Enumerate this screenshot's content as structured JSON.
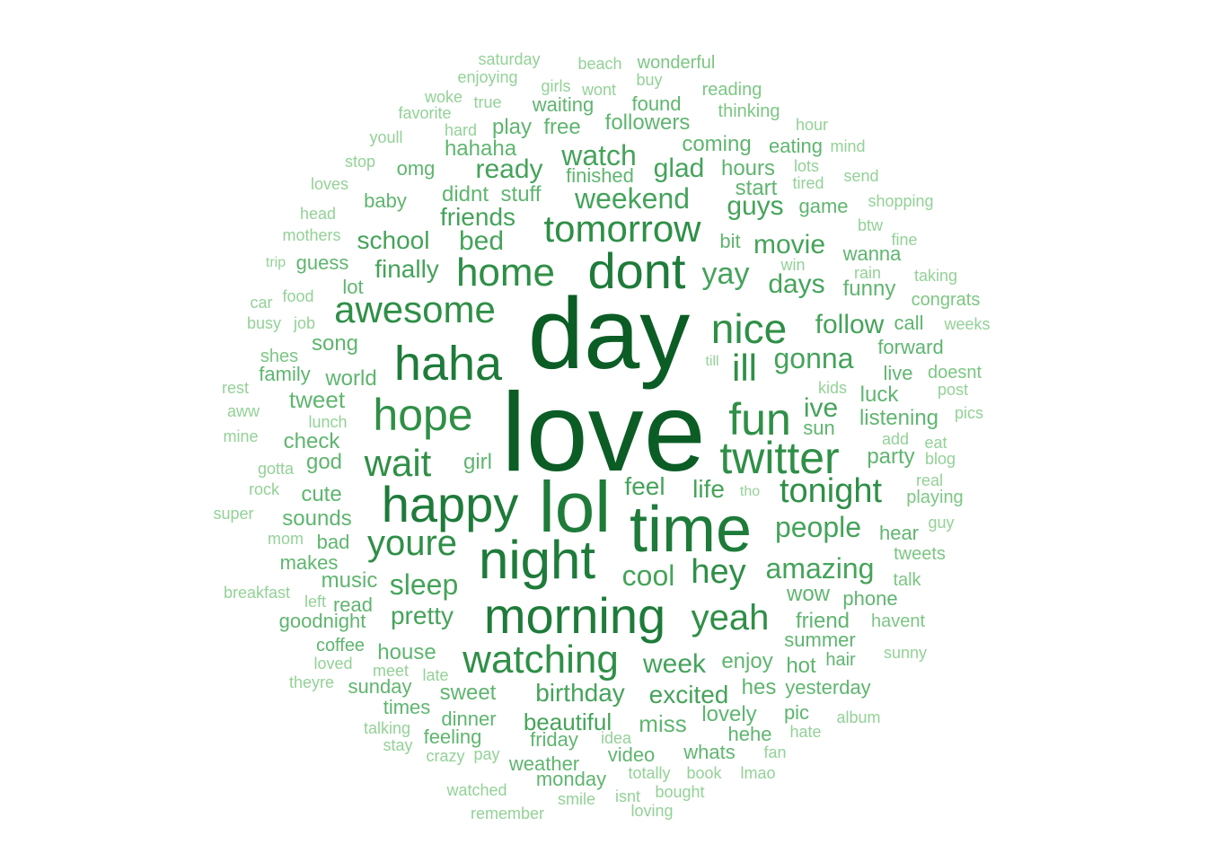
{
  "palette": {
    "darkest": "#0b5d25",
    "dark": "#1e7b3a",
    "mid_dark": "#2f8f47",
    "mid": "#45a35a",
    "mid_light": "#5fb56f",
    "light": "#7cc683",
    "lightest": "#93d197"
  },
  "words": [
    {
      "text": "love",
      "tier": 1
    },
    {
      "text": "day",
      "tier": 1
    },
    {
      "text": "lol",
      "tier": 2
    },
    {
      "text": "time",
      "tier": 2
    },
    {
      "text": "night",
      "tier": 2
    },
    {
      "text": "morning",
      "tier": 2
    },
    {
      "text": "dont",
      "tier": 2
    },
    {
      "text": "happy",
      "tier": 2
    },
    {
      "text": "haha",
      "tier": 2
    },
    {
      "text": "hope",
      "tier": 3
    },
    {
      "text": "twitter",
      "tier": 3
    },
    {
      "text": "fun",
      "tier": 3
    },
    {
      "text": "home",
      "tier": 3
    },
    {
      "text": "tomorrow",
      "tier": 3
    },
    {
      "text": "nice",
      "tier": 3
    },
    {
      "text": "awesome",
      "tier": 3
    },
    {
      "text": "watching",
      "tier": 3
    },
    {
      "text": "youre",
      "tier": 3
    },
    {
      "text": "wait",
      "tier": 3
    },
    {
      "text": "ill",
      "tier": 3
    },
    {
      "text": "yeah",
      "tier": 3
    },
    {
      "text": "tonight",
      "tier": 3
    },
    {
      "text": "hey",
      "tier": 3
    },
    {
      "text": "weekend",
      "tier": 4
    },
    {
      "text": "watch",
      "tier": 4
    },
    {
      "text": "sleep",
      "tier": 4
    },
    {
      "text": "cool",
      "tier": 4
    },
    {
      "text": "amazing",
      "tier": 4
    },
    {
      "text": "people",
      "tier": 4
    },
    {
      "text": "gonna",
      "tier": 4
    },
    {
      "text": "yay",
      "tier": 4
    },
    {
      "text": "week",
      "tier": 4
    },
    {
      "text": "birthday",
      "tier": 4
    },
    {
      "text": "follow",
      "tier": 4
    },
    {
      "text": "movie",
      "tier": 4
    },
    {
      "text": "ready",
      "tier": 4
    },
    {
      "text": "glad",
      "tier": 4
    },
    {
      "text": "guys",
      "tier": 4
    },
    {
      "text": "days",
      "tier": 4
    },
    {
      "text": "bed",
      "tier": 4
    },
    {
      "text": "friends",
      "tier": 4
    },
    {
      "text": "school",
      "tier": 4
    },
    {
      "text": "finally",
      "tier": 4
    },
    {
      "text": "pretty",
      "tier": 4
    },
    {
      "text": "ive",
      "tier": 4
    },
    {
      "text": "feel",
      "tier": 4
    },
    {
      "text": "life",
      "tier": 4
    },
    {
      "text": "excited",
      "tier": 4
    },
    {
      "text": "beautiful",
      "tier": 4
    },
    {
      "text": "song",
      "tier": 5
    },
    {
      "text": "tweet",
      "tier": 5
    },
    {
      "text": "check",
      "tier": 5
    },
    {
      "text": "world",
      "tier": 5
    },
    {
      "text": "god",
      "tier": 5
    },
    {
      "text": "cute",
      "tier": 5
    },
    {
      "text": "sounds",
      "tier": 5
    },
    {
      "text": "girl",
      "tier": 5
    },
    {
      "text": "music",
      "tier": 5
    },
    {
      "text": "house",
      "tier": 5
    },
    {
      "text": "sweet",
      "tier": 5
    },
    {
      "text": "miss",
      "tier": 5
    },
    {
      "text": "enjoy",
      "tier": 5
    },
    {
      "text": "friend",
      "tier": 5
    },
    {
      "text": "summer",
      "tier": 5
    },
    {
      "text": "wow",
      "tier": 5
    },
    {
      "text": "luck",
      "tier": 5
    },
    {
      "text": "listening",
      "tier": 5
    },
    {
      "text": "party",
      "tier": 5
    },
    {
      "text": "funny",
      "tier": 5
    },
    {
      "text": "forward",
      "tier": 5
    },
    {
      "text": "didnt",
      "tier": 5
    },
    {
      "text": "stuff",
      "tier": 5
    },
    {
      "text": "hours",
      "tier": 5
    },
    {
      "text": "coming",
      "tier": 5
    },
    {
      "text": "start",
      "tier": 5
    },
    {
      "text": "lovely",
      "tier": 5
    },
    {
      "text": "hes",
      "tier": 5
    },
    {
      "text": "hot",
      "tier": 5
    },
    {
      "text": "dinner",
      "tier": 5
    },
    {
      "text": "friday",
      "tier": 5
    },
    {
      "text": "video",
      "tier": 5
    },
    {
      "text": "weather",
      "tier": 5
    },
    {
      "text": "monday",
      "tier": 5
    },
    {
      "text": "sunday",
      "tier": 5
    },
    {
      "text": "feeling",
      "tier": 5
    },
    {
      "text": "whats",
      "tier": 5
    },
    {
      "text": "hehe",
      "tier": 5
    },
    {
      "text": "yesterday",
      "tier": 5
    },
    {
      "text": "hear",
      "tier": 5
    },
    {
      "text": "bad",
      "tier": 5
    },
    {
      "text": "makes",
      "tier": 5
    },
    {
      "text": "read",
      "tier": 5
    },
    {
      "text": "goodnight",
      "tier": 5
    },
    {
      "text": "hahaha",
      "tier": 5
    },
    {
      "text": "followers",
      "tier": 5
    },
    {
      "text": "finished",
      "tier": 5
    },
    {
      "text": "play",
      "tier": 5
    },
    {
      "text": "free",
      "tier": 5
    },
    {
      "text": "waiting",
      "tier": 5
    },
    {
      "text": "found",
      "tier": 5
    },
    {
      "text": "eating",
      "tier": 5
    },
    {
      "text": "game",
      "tier": 5
    },
    {
      "text": "wanna",
      "tier": 5
    },
    {
      "text": "baby",
      "tier": 5
    },
    {
      "text": "omg",
      "tier": 5
    },
    {
      "text": "guess",
      "tier": 5
    },
    {
      "text": "lot",
      "tier": 5
    },
    {
      "text": "call",
      "tier": 5
    },
    {
      "text": "live",
      "tier": 5
    },
    {
      "text": "phone",
      "tier": 5
    },
    {
      "text": "hair",
      "tier": 5
    },
    {
      "text": "pic",
      "tier": 5
    },
    {
      "text": "times",
      "tier": 5
    },
    {
      "text": "sun",
      "tier": 5
    },
    {
      "text": "family",
      "tier": 5
    },
    {
      "text": "coffee",
      "tier": 5
    },
    {
      "text": "bit",
      "tier": 5
    },
    {
      "text": "reading",
      "tier": 6
    },
    {
      "text": "thinking",
      "tier": 6
    },
    {
      "text": "wonderful",
      "tier": 6
    },
    {
      "text": "beach",
      "tier": 6
    },
    {
      "text": "saturday",
      "tier": 6
    },
    {
      "text": "enjoying",
      "tier": 6
    },
    {
      "text": "girls",
      "tier": 6
    },
    {
      "text": "wont",
      "tier": 6
    },
    {
      "text": "buy",
      "tier": 6
    },
    {
      "text": "woke",
      "tier": 6
    },
    {
      "text": "true",
      "tier": 6
    },
    {
      "text": "favorite",
      "tier": 6
    },
    {
      "text": "hard",
      "tier": 6
    },
    {
      "text": "youll",
      "tier": 6
    },
    {
      "text": "hour",
      "tier": 6
    },
    {
      "text": "mind",
      "tier": 6
    },
    {
      "text": "lots",
      "tier": 6
    },
    {
      "text": "tired",
      "tier": 6
    },
    {
      "text": "send",
      "tier": 6
    },
    {
      "text": "shopping",
      "tier": 6
    },
    {
      "text": "btw",
      "tier": 6
    },
    {
      "text": "fine",
      "tier": 6
    },
    {
      "text": "stop",
      "tier": 6
    },
    {
      "text": "loves",
      "tier": 6
    },
    {
      "text": "head",
      "tier": 6
    },
    {
      "text": "mothers",
      "tier": 6
    },
    {
      "text": "trip",
      "tier": 6
    },
    {
      "text": "food",
      "tier": 6
    },
    {
      "text": "car",
      "tier": 6
    },
    {
      "text": "busy",
      "tier": 6
    },
    {
      "text": "job",
      "tier": 6
    },
    {
      "text": "shes",
      "tier": 6
    },
    {
      "text": "rest",
      "tier": 6
    },
    {
      "text": "aww",
      "tier": 6
    },
    {
      "text": "mine",
      "tier": 6
    },
    {
      "text": "lunch",
      "tier": 6
    },
    {
      "text": "gotta",
      "tier": 6
    },
    {
      "text": "rock",
      "tier": 6
    },
    {
      "text": "super",
      "tier": 6
    },
    {
      "text": "mom",
      "tier": 6
    },
    {
      "text": "breakfast",
      "tier": 6
    },
    {
      "text": "left",
      "tier": 6
    },
    {
      "text": "loved",
      "tier": 6
    },
    {
      "text": "meet",
      "tier": 6
    },
    {
      "text": "late",
      "tier": 6
    },
    {
      "text": "theyre",
      "tier": 6
    },
    {
      "text": "talking",
      "tier": 6
    },
    {
      "text": "stay",
      "tier": 6
    },
    {
      "text": "crazy",
      "tier": 6
    },
    {
      "text": "pay",
      "tier": 6
    },
    {
      "text": "idea",
      "tier": 6
    },
    {
      "text": "watched",
      "tier": 6
    },
    {
      "text": "smile",
      "tier": 6
    },
    {
      "text": "remember",
      "tier": 6
    },
    {
      "text": "isnt",
      "tier": 6
    },
    {
      "text": "loving",
      "tier": 6
    },
    {
      "text": "bought",
      "tier": 6
    },
    {
      "text": "totally",
      "tier": 6
    },
    {
      "text": "book",
      "tier": 6
    },
    {
      "text": "lmao",
      "tier": 6
    },
    {
      "text": "fan",
      "tier": 6
    },
    {
      "text": "hate",
      "tier": 6
    },
    {
      "text": "album",
      "tier": 6
    },
    {
      "text": "sunny",
      "tier": 6
    },
    {
      "text": "havent",
      "tier": 6
    },
    {
      "text": "talk",
      "tier": 6
    },
    {
      "text": "tweets",
      "tier": 6
    },
    {
      "text": "guy",
      "tier": 6
    },
    {
      "text": "playing",
      "tier": 6
    },
    {
      "text": "real",
      "tier": 6
    },
    {
      "text": "blog",
      "tier": 6
    },
    {
      "text": "eat",
      "tier": 6
    },
    {
      "text": "add",
      "tier": 6
    },
    {
      "text": "pics",
      "tier": 6
    },
    {
      "text": "post",
      "tier": 6
    },
    {
      "text": "doesnt",
      "tier": 6
    },
    {
      "text": "weeks",
      "tier": 6
    },
    {
      "text": "congrats",
      "tier": 6
    },
    {
      "text": "taking",
      "tier": 6
    },
    {
      "text": "rain",
      "tier": 6
    },
    {
      "text": "win",
      "tier": 6
    },
    {
      "text": "kids",
      "tier": 6
    },
    {
      "text": "till",
      "tier": 6
    },
    {
      "text": "tho",
      "tier": 6
    }
  ]
}
